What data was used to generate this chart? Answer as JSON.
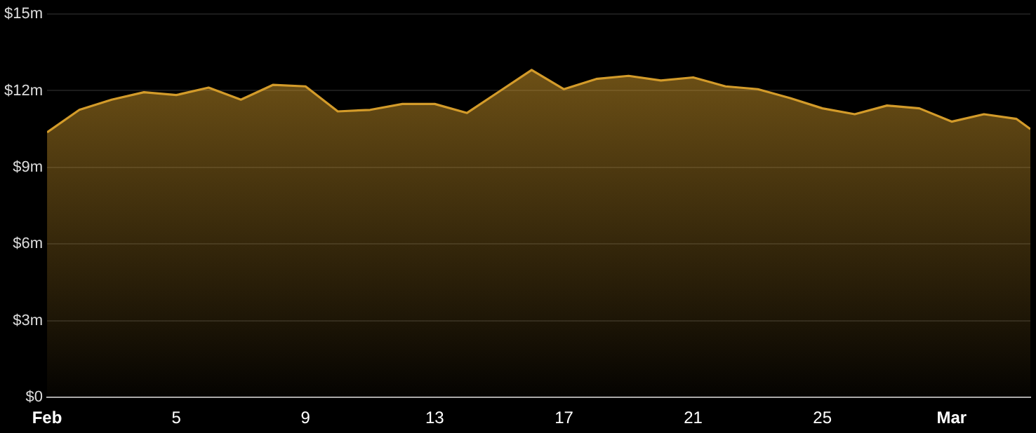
{
  "chart_data": {
    "type": "area",
    "x": [
      "--02-01",
      "--02-02",
      "--02-03",
      "--02-04",
      "--02-05",
      "--02-06",
      "--02-07",
      "--02-08",
      "--02-09",
      "--02-10",
      "--02-11",
      "--02-12",
      "--02-13",
      "--02-14",
      "--02-15",
      "--02-16",
      "--02-17",
      "--02-18",
      "--02-19",
      "--02-20",
      "--02-21",
      "--02-22",
      "--02-23",
      "--02-24",
      "--02-25",
      "--02-26",
      "--02-27",
      "--02-28",
      "--03-01",
      "--03-02",
      "--03-03",
      "--03-03T10:30"
    ],
    "values": [
      10.37,
      11.25,
      11.65,
      11.94,
      11.83,
      12.12,
      11.65,
      12.23,
      12.17,
      11.19,
      11.25,
      11.48,
      11.48,
      11.13,
      11.97,
      12.81,
      12.06,
      12.46,
      12.58,
      12.4,
      12.52,
      12.17,
      12.06,
      11.71,
      11.31,
      11.08,
      11.42,
      11.31,
      10.79,
      11.08,
      10.9,
      10.5
    ],
    "color": "#d39b2a",
    "xlim": [
      "--02-01",
      "--03-03T10:30"
    ],
    "xticks": [
      {
        "value": "--02-01",
        "label": "Feb"
      },
      {
        "value": "--02-05",
        "label": "5"
      },
      {
        "value": "--02-09",
        "label": "9"
      },
      {
        "value": "--02-13",
        "label": "13"
      },
      {
        "value": "--02-17",
        "label": "17"
      },
      {
        "value": "--02-21",
        "label": "21"
      },
      {
        "value": "--02-25",
        "label": "25"
      },
      {
        "value": "--03-01",
        "label": "Mar"
      }
    ],
    "ylim": [
      0,
      15
    ],
    "yticks": [
      {
        "value": 0,
        "label": "$0"
      },
      {
        "value": 3,
        "label": "$3m"
      },
      {
        "value": 6,
        "label": "$6m"
      },
      {
        "value": 9,
        "label": "$9m"
      },
      {
        "value": 12,
        "label": "$12m"
      },
      {
        "value": 15,
        "label": "$15m"
      }
    ],
    "grid": "y",
    "legend": false
  }
}
